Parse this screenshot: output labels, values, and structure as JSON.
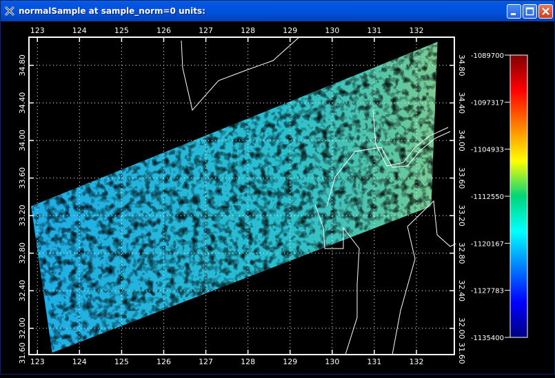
{
  "window": {
    "title": "normalSample at sample_norm=0  units:",
    "icons": {
      "app": "x-window-icon",
      "minimize": "minimize-icon",
      "maximize": "maximize-icon",
      "close": "close-icon"
    }
  },
  "colors": {
    "titlebar": "#0054e3",
    "background": "#000000",
    "axis": "#ffffff",
    "grid": "#ffffff"
  },
  "chart_data": {
    "type": "heatmap",
    "title": "",
    "xlabel": "",
    "ylabel": "",
    "xlim": [
      122.8,
      132.9
    ],
    "ylim": [
      31.72,
      35.1
    ],
    "x_ticks": [
      "123",
      "124",
      "125",
      "126",
      "127",
      "128",
      "129",
      "130",
      "131",
      "132"
    ],
    "y_ticks": [
      "31.60",
      "32.00",
      "32.40",
      "32.80",
      "33.20",
      "33.60",
      "34.00",
      "34.40",
      "34.80"
    ],
    "grid": true,
    "colorbar": {
      "position": "right",
      "labels": [
        "-1089700",
        "-1097317",
        "-1104933",
        "-1112550",
        "-1120167",
        "-1127783",
        "-1135400"
      ],
      "range": [
        -1135400,
        -1089700
      ],
      "colormap": "jet"
    },
    "swath_corners": [
      {
        "lon": 122.85,
        "lat": 33.3
      },
      {
        "lon": 132.5,
        "lat": 35.05
      },
      {
        "lon": 132.35,
        "lat": 33.3
      },
      {
        "lon": 123.35,
        "lat": 31.74
      }
    ]
  }
}
